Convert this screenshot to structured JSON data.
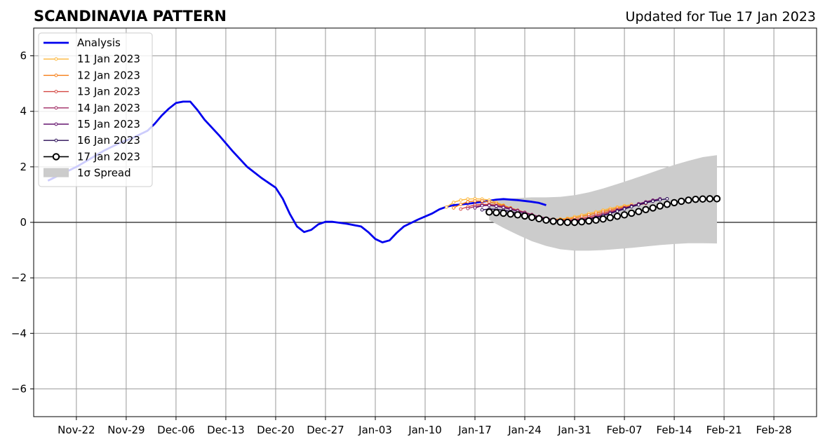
{
  "chart_data": {
    "type": "line",
    "title": "SCANDINAVIA PATTERN",
    "subtitle": "Updated for Tue 17 Jan 2023",
    "ylim": [
      -7,
      7
    ],
    "yticks": [
      -6,
      -4,
      -2,
      0,
      2,
      4,
      6
    ],
    "ytick_labels": [
      "−6",
      "−4",
      "−2",
      "0",
      "2",
      "4",
      "6"
    ],
    "xlim": [
      "2022-11-16",
      "2023-03-06"
    ],
    "xticks": [
      "2022-11-22",
      "2022-11-29",
      "2022-12-06",
      "2022-12-13",
      "2022-12-20",
      "2022-12-27",
      "2023-01-03",
      "2023-01-10",
      "2023-01-17",
      "2023-01-24",
      "2023-01-31",
      "2023-02-07",
      "2023-02-14",
      "2023-02-21",
      "2023-02-28"
    ],
    "xtick_labels": [
      "Nov-22",
      "Nov-29",
      "Dec-06",
      "Dec-13",
      "Dec-20",
      "Dec-27",
      "Jan-03",
      "Jan-10",
      "Jan-17",
      "Jan-24",
      "Jan-31",
      "Feb-07",
      "Feb-14",
      "Feb-21",
      "Feb-28"
    ],
    "grid": true,
    "legend_position": "upper-left",
    "analysis": {
      "name": "Analysis",
      "color": "#0000ee",
      "points": [
        [
          "2022-11-18",
          1.5
        ],
        [
          "2022-11-20",
          1.75
        ],
        [
          "2022-11-22",
          2.0
        ],
        [
          "2022-11-24",
          2.3
        ],
        [
          "2022-11-26",
          2.6
        ],
        [
          "2022-11-28",
          2.85
        ],
        [
          "2022-11-30",
          3.05
        ],
        [
          "2022-12-02",
          3.3
        ],
        [
          "2022-12-03",
          3.55
        ],
        [
          "2022-12-04",
          3.85
        ],
        [
          "2022-12-05",
          4.1
        ],
        [
          "2022-12-06",
          4.3
        ],
        [
          "2022-12-07",
          4.35
        ],
        [
          "2022-12-08",
          4.35
        ],
        [
          "2022-12-09",
          4.05
        ],
        [
          "2022-12-10",
          3.7
        ],
        [
          "2022-12-12",
          3.15
        ],
        [
          "2022-12-14",
          2.55
        ],
        [
          "2022-12-16",
          2.0
        ],
        [
          "2022-12-18",
          1.6
        ],
        [
          "2022-12-20",
          1.25
        ],
        [
          "2022-12-21",
          0.85
        ],
        [
          "2022-12-22",
          0.3
        ],
        [
          "2022-12-23",
          -0.15
        ],
        [
          "2022-12-24",
          -0.35
        ],
        [
          "2022-12-25",
          -0.27
        ],
        [
          "2022-12-26",
          -0.07
        ],
        [
          "2022-12-27",
          0.02
        ],
        [
          "2022-12-28",
          0.02
        ],
        [
          "2022-12-30",
          -0.05
        ],
        [
          "2023-01-01",
          -0.15
        ],
        [
          "2023-01-02",
          -0.35
        ],
        [
          "2023-01-03",
          -0.6
        ],
        [
          "2023-01-04",
          -0.72
        ],
        [
          "2023-01-05",
          -0.65
        ],
        [
          "2023-01-06",
          -0.38
        ],
        [
          "2023-01-07",
          -0.15
        ],
        [
          "2023-01-09",
          0.1
        ],
        [
          "2023-01-11",
          0.32
        ],
        [
          "2023-01-12",
          0.47
        ],
        [
          "2023-01-13",
          0.56
        ],
        [
          "2023-01-14",
          0.62
        ],
        [
          "2023-01-16",
          0.67
        ],
        [
          "2023-01-18",
          0.74
        ],
        [
          "2023-01-20",
          0.82
        ],
        [
          "2023-01-21",
          0.84
        ],
        [
          "2023-01-23",
          0.8
        ],
        [
          "2023-01-25",
          0.74
        ],
        [
          "2023-01-26",
          0.7
        ],
        [
          "2023-01-27",
          0.62
        ]
      ]
    },
    "forecasts": [
      {
        "name": "11 Jan 2023",
        "color": "#fcb638",
        "values": [
          0.55,
          0.72,
          0.8,
          0.84,
          0.85,
          0.84,
          0.8,
          0.72,
          0.62,
          0.52,
          0.42,
          0.33,
          0.25,
          0.18,
          0.13,
          0.11,
          0.12,
          0.15,
          0.2,
          0.26,
          0.32,
          0.38,
          0.44,
          0.5,
          0.55,
          0.6,
          0.64
        ]
      },
      {
        "name": "12 Jan 2023",
        "color": "#f57d15",
        "values": [
          0.52,
          0.65,
          0.74,
          0.77,
          0.77,
          0.73,
          0.68,
          0.6,
          0.52,
          0.44,
          0.36,
          0.28,
          0.2,
          0.14,
          0.11,
          0.1,
          0.12,
          0.16,
          0.21,
          0.27,
          0.33,
          0.39,
          0.45,
          0.51,
          0.56,
          0.6,
          0.65
        ]
      },
      {
        "name": "13 Jan 2023",
        "color": "#d44842",
        "values": [
          0.48,
          0.56,
          0.63,
          0.65,
          0.65,
          0.62,
          0.57,
          0.5,
          0.43,
          0.35,
          0.27,
          0.19,
          0.13,
          0.09,
          0.07,
          0.08,
          0.1,
          0.14,
          0.2,
          0.26,
          0.33,
          0.4,
          0.46,
          0.53,
          0.58,
          0.63,
          0.68
        ]
      },
      {
        "name": "14 Jan 2023",
        "color": "#9f2a63",
        "values": [
          0.5,
          0.57,
          0.61,
          0.62,
          0.6,
          0.56,
          0.5,
          0.43,
          0.36,
          0.28,
          0.21,
          0.15,
          0.1,
          0.07,
          0.06,
          0.07,
          0.1,
          0.15,
          0.21,
          0.28,
          0.36,
          0.44,
          0.52,
          0.6,
          0.67,
          0.74,
          0.8
        ]
      },
      {
        "name": "15 Jan 2023",
        "color": "#65156e",
        "values": [
          0.52,
          0.6,
          0.61,
          0.58,
          0.53,
          0.47,
          0.4,
          0.33,
          0.26,
          0.19,
          0.13,
          0.08,
          0.05,
          0.04,
          0.05,
          0.08,
          0.12,
          0.18,
          0.25,
          0.33,
          0.42,
          0.5,
          0.58,
          0.66,
          0.73,
          0.79,
          0.85
        ]
      },
      {
        "name": "16 Jan 2023",
        "color": "#280b54",
        "values": [
          0.45,
          0.48,
          0.47,
          0.44,
          0.39,
          0.33,
          0.27,
          0.21,
          0.15,
          0.1,
          0.06,
          0.04,
          0.03,
          0.04,
          0.07,
          0.11,
          0.17,
          0.24,
          0.32,
          0.4,
          0.48,
          0.56,
          0.63,
          0.7,
          0.76,
          0.81,
          0.85
        ]
      }
    ],
    "forecast_start_dates": [
      "2023-01-13",
      "2023-01-14",
      "2023-01-15",
      "2023-01-16",
      "2023-01-17",
      "2023-01-18"
    ],
    "forecast_17jan": {
      "name": "17 Jan 2023",
      "color": "#000000",
      "start": "2023-01-19",
      "values": [
        0.37,
        0.35,
        0.33,
        0.3,
        0.27,
        0.23,
        0.18,
        0.13,
        0.08,
        0.04,
        0.01,
        0.0,
        0.0,
        0.02,
        0.05,
        0.08,
        0.12,
        0.17,
        0.22,
        0.27,
        0.33,
        0.39,
        0.46,
        0.52,
        0.59,
        0.65,
        0.71,
        0.76,
        0.8,
        0.83,
        0.84,
        0.85,
        0.85
      ]
    },
    "spread": {
      "name": "1σ Spread",
      "color": "#cccccc",
      "dates": [
        "2023-01-19",
        "2023-01-21",
        "2023-01-23",
        "2023-01-25",
        "2023-01-27",
        "2023-01-29",
        "2023-01-31",
        "2023-02-02",
        "2023-02-04",
        "2023-02-06",
        "2023-02-08",
        "2023-02-10",
        "2023-02-12",
        "2023-02-14",
        "2023-02-16",
        "2023-02-18",
        "2023-02-20"
      ],
      "upper": [
        0.72,
        0.82,
        0.88,
        0.9,
        0.9,
        0.92,
        0.98,
        1.08,
        1.22,
        1.38,
        1.55,
        1.72,
        1.9,
        2.07,
        2.22,
        2.35,
        2.42
      ],
      "lower": [
        0.08,
        -0.2,
        -0.45,
        -0.68,
        -0.85,
        -0.97,
        -1.02,
        -1.02,
        -1.0,
        -0.96,
        -0.92,
        -0.87,
        -0.82,
        -0.78,
        -0.75,
        -0.75,
        -0.76
      ]
    },
    "legend": [
      "Analysis",
      "11 Jan 2023",
      "12 Jan 2023",
      "13 Jan 2023",
      "14 Jan 2023",
      "15 Jan 2023",
      "16 Jan 2023",
      "17 Jan 2023",
      "1σ Spread"
    ]
  }
}
